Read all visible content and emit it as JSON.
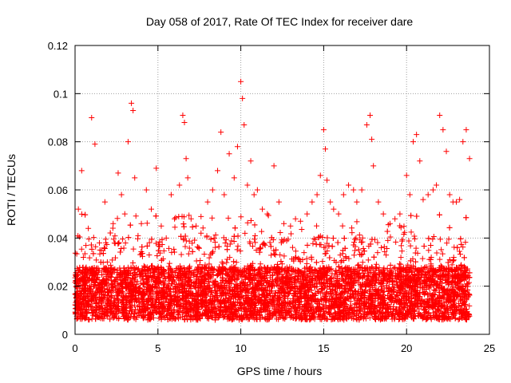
{
  "chart_data": {
    "type": "scatter",
    "title": "Day 058 of 2017, Rate Of TEC Index for receiver dare",
    "xlabel": "GPS time / hours",
    "ylabel": "ROTI / TECUs",
    "xlim": [
      0,
      25
    ],
    "ylim": [
      0,
      0.12
    ],
    "x_ticks": [
      0,
      5,
      10,
      15,
      20,
      25
    ],
    "x_tick_labels": [
      "0",
      "5",
      "10",
      "15",
      "20",
      "25"
    ],
    "y_ticks": [
      0,
      0.02,
      0.04,
      0.06,
      0.08,
      0.1,
      0.12
    ],
    "y_tick_labels": [
      "0",
      "0.02",
      "0.04",
      "0.06",
      "0.08",
      "0.1",
      "0.12"
    ],
    "grid": true,
    "marker": "+",
    "color": "#ff0000",
    "data_coverage_hours": [
      0,
      23.8
    ],
    "series": [
      {
        "x": [
          0.1,
          0.2,
          0.3,
          0.4,
          0.5,
          0.6,
          0.8,
          1.0,
          1.2,
          1.5,
          1.8,
          2.0,
          2.3,
          2.6,
          2.8,
          3.0,
          3.2,
          3.4,
          3.5,
          3.6,
          3.8,
          4.0,
          4.3,
          4.6,
          4.9,
          5.2,
          5.5,
          5.8,
          6.0,
          6.3,
          6.5,
          6.6,
          6.7,
          6.8,
          7.0,
          7.3,
          7.6,
          8.0,
          8.3,
          8.6,
          8.8,
          9.0,
          9.3,
          9.6,
          9.8,
          10.0,
          10.1,
          10.2,
          10.4,
          10.6,
          10.8,
          11.0,
          11.3,
          11.6,
          12.0,
          12.3,
          12.6,
          13.0,
          13.3,
          13.6,
          14.0,
          14.3,
          14.6,
          14.8,
          15.0,
          15.1,
          15.2,
          15.4,
          15.6,
          15.9,
          16.2,
          16.5,
          16.8,
          17.0,
          17.3,
          17.6,
          17.8,
          17.9,
          18.0,
          18.3,
          18.6,
          19.0,
          19.3,
          19.6,
          20.0,
          20.2,
          20.4,
          20.6,
          20.8,
          21.0,
          21.3,
          21.6,
          21.8,
          22.0,
          22.2,
          22.4,
          22.6,
          22.8,
          23.0,
          23.2,
          23.4,
          23.6,
          23.8
        ],
        "y": [
          0.02,
          0.052,
          0.015,
          0.068,
          0.032,
          0.018,
          0.044,
          0.09,
          0.079,
          0.035,
          0.055,
          0.025,
          0.046,
          0.067,
          0.058,
          0.05,
          0.08,
          0.096,
          0.093,
          0.065,
          0.041,
          0.046,
          0.06,
          0.052,
          0.069,
          0.045,
          0.04,
          0.058,
          0.048,
          0.062,
          0.091,
          0.088,
          0.073,
          0.065,
          0.048,
          0.045,
          0.042,
          0.055,
          0.06,
          0.068,
          0.084,
          0.058,
          0.075,
          0.065,
          0.078,
          0.105,
          0.098,
          0.087,
          0.062,
          0.072,
          0.058,
          0.06,
          0.052,
          0.05,
          0.07,
          0.055,
          0.046,
          0.045,
          0.048,
          0.047,
          0.05,
          0.055,
          0.058,
          0.066,
          0.085,
          0.077,
          0.064,
          0.055,
          0.052,
          0.05,
          0.058,
          0.062,
          0.06,
          0.055,
          0.06,
          0.087,
          0.091,
          0.081,
          0.07,
          0.055,
          0.05,
          0.046,
          0.048,
          0.05,
          0.066,
          0.058,
          0.08,
          0.083,
          0.072,
          0.056,
          0.058,
          0.06,
          0.062,
          0.091,
          0.085,
          0.076,
          0.058,
          0.055,
          0.055,
          0.056,
          0.08,
          0.085,
          0.073
        ]
      }
    ]
  }
}
